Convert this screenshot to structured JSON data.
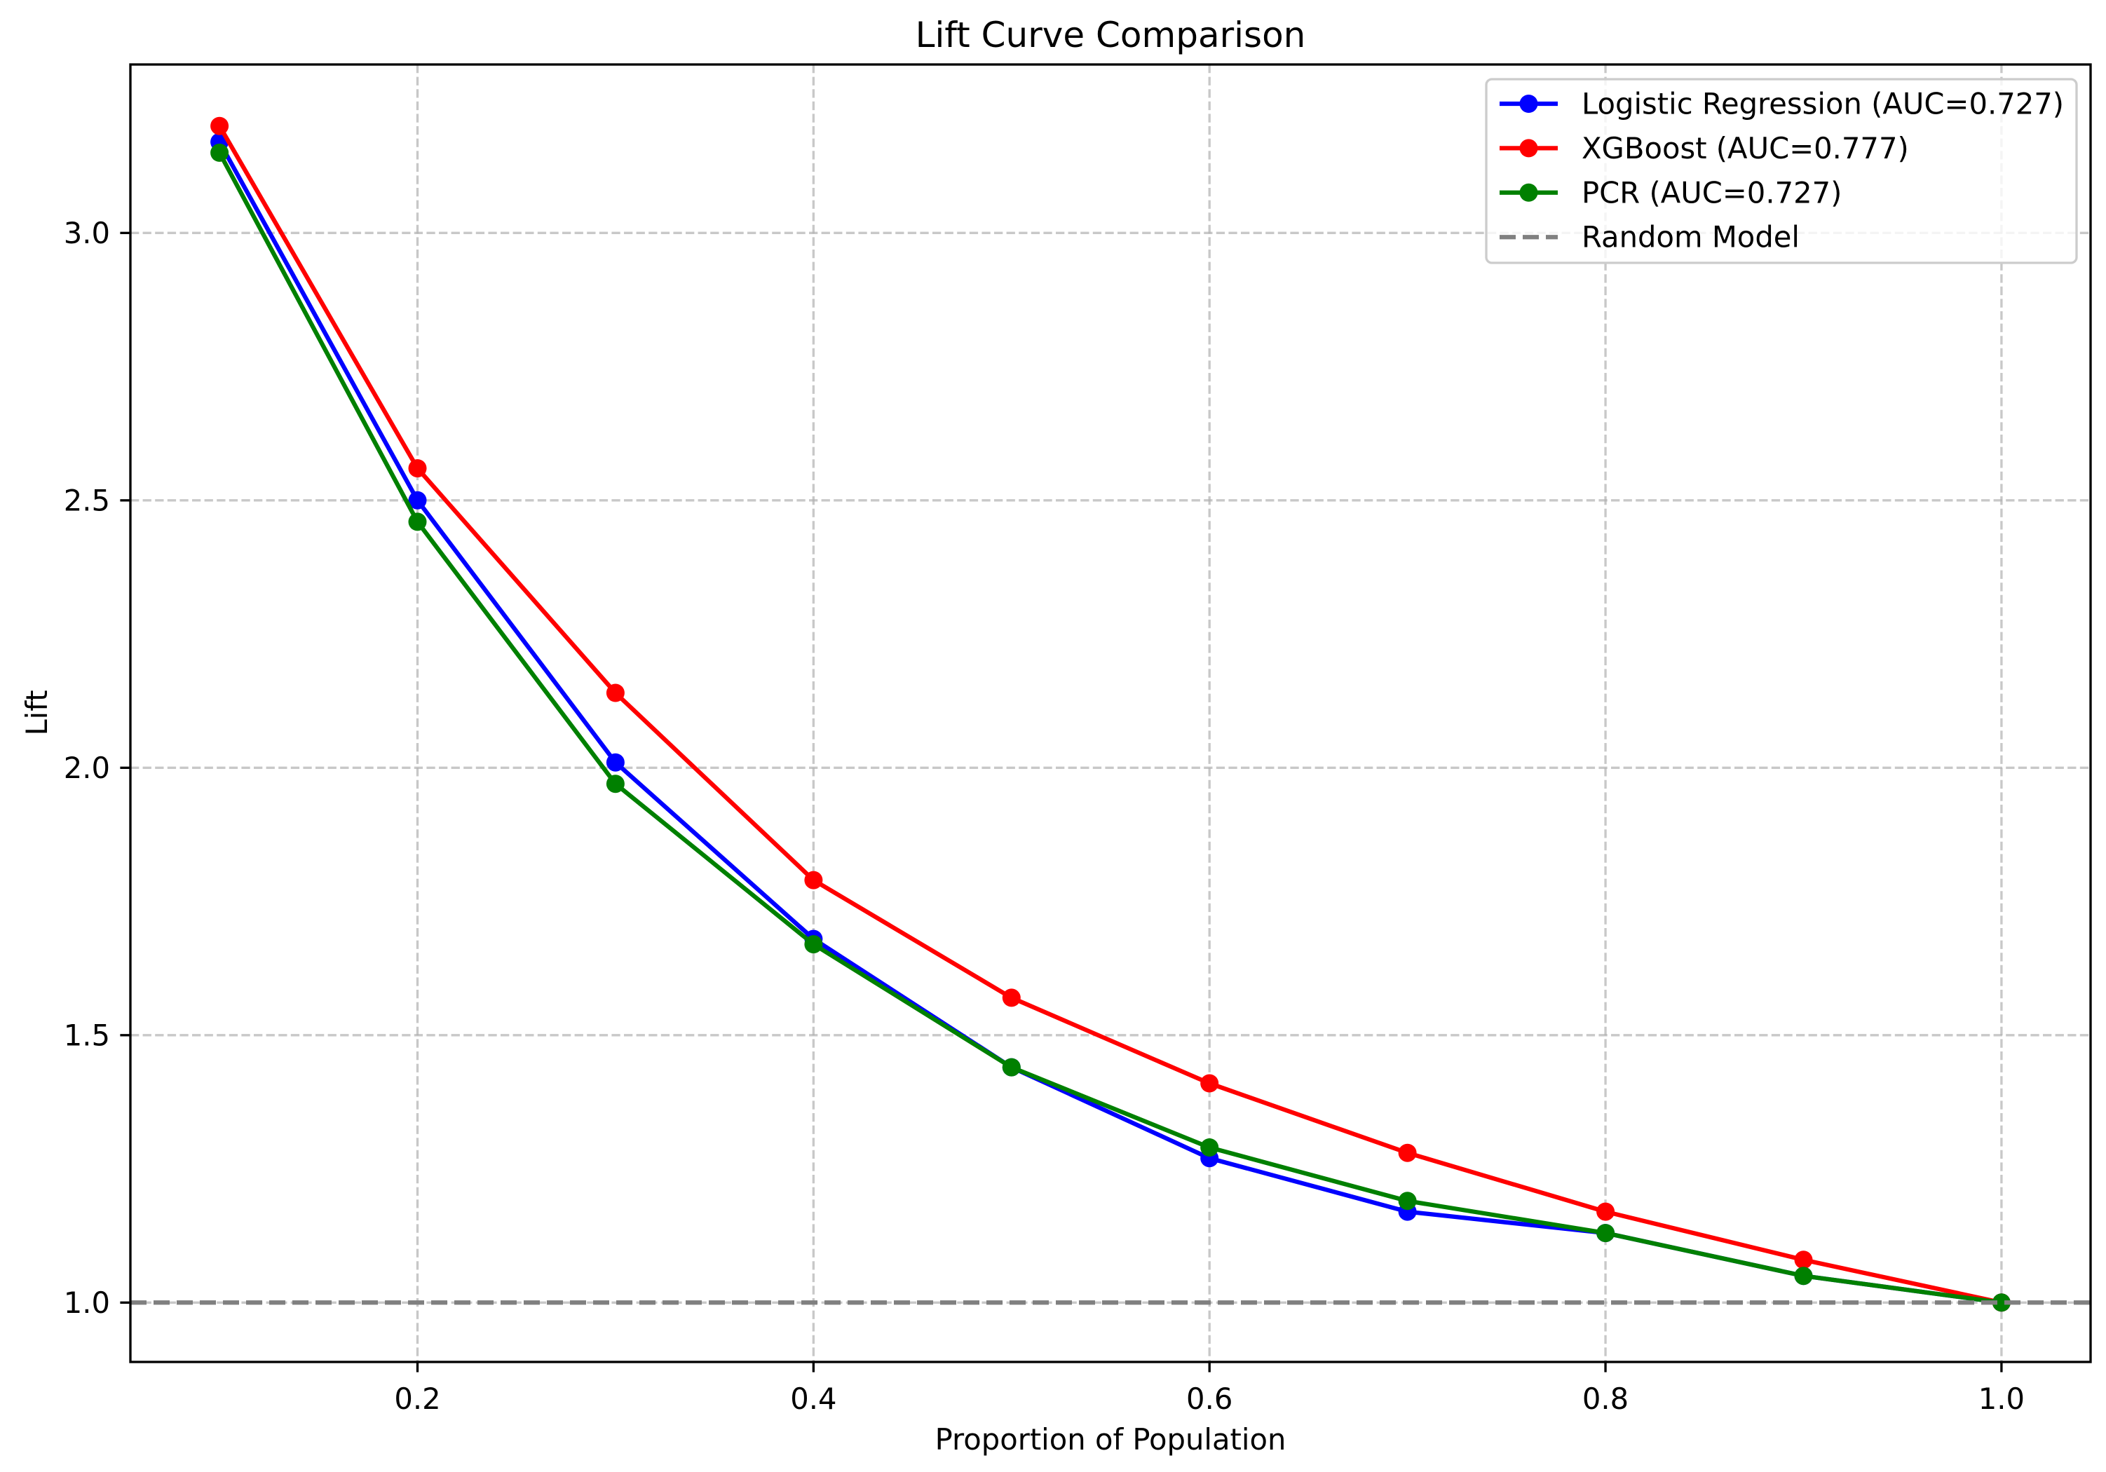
{
  "chart_data": {
    "type": "line",
    "title": "Lift Curve Comparison",
    "xlabel": "Proportion of Population",
    "ylabel": "Lift",
    "xlim": [
      0.055,
      1.045
    ],
    "ylim": [
      0.889,
      3.315
    ],
    "xticks": [
      0.2,
      0.4,
      0.6,
      0.8,
      1.0
    ],
    "xtick_labels": [
      "0.2",
      "0.4",
      "0.6",
      "0.8",
      "1.0"
    ],
    "yticks": [
      1.0,
      1.5,
      2.0,
      2.5,
      3.0
    ],
    "ytick_labels": [
      "1.0",
      "1.5",
      "2.0",
      "2.5",
      "3.0"
    ],
    "grid": true,
    "legend_position": "upper right",
    "x": [
      0.1,
      0.2,
      0.3,
      0.4,
      0.5,
      0.6,
      0.7,
      0.8,
      0.9,
      1.0
    ],
    "series": [
      {
        "name": "Logistic Regression (AUC=0.727)",
        "color": "#0000ff",
        "marker": "circle",
        "values": [
          3.17,
          2.5,
          2.01,
          1.68,
          1.44,
          1.27,
          1.17,
          1.13,
          1.05,
          1.0
        ]
      },
      {
        "name": "XGBoost (AUC=0.777)",
        "color": "#ff0000",
        "marker": "circle",
        "values": [
          3.2,
          2.56,
          2.14,
          1.79,
          1.57,
          1.41,
          1.28,
          1.17,
          1.08,
          1.0
        ]
      },
      {
        "name": "PCR (AUC=0.727)",
        "color": "#008000",
        "marker": "circle",
        "values": [
          3.15,
          2.46,
          1.97,
          1.67,
          1.44,
          1.29,
          1.19,
          1.13,
          1.05,
          1.0
        ]
      }
    ],
    "reference_line": {
      "name": "Random Model",
      "y": 1.0,
      "color": "#808080",
      "linestyle": "dashed"
    }
  }
}
